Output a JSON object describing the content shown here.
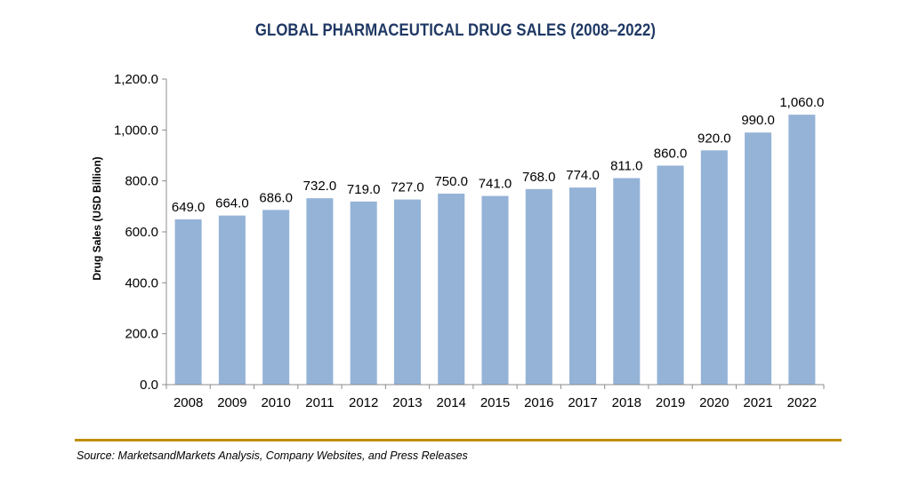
{
  "chart_data": {
    "type": "bar",
    "title": "GLOBAL PHARMACEUTICAL DRUG SALES (2008–2022)",
    "ylabel": "Drug Sales (USD Billion)",
    "xlabel": "",
    "categories": [
      "2008",
      "2009",
      "2010",
      "2011",
      "2012",
      "2013",
      "2014",
      "2015",
      "2016",
      "2017",
      "2018",
      "2019",
      "2020",
      "2021",
      "2022"
    ],
    "values": [
      649.0,
      664.0,
      686.0,
      732.0,
      719.0,
      727.0,
      750.0,
      741.0,
      768.0,
      774.0,
      811.0,
      860.0,
      920.0,
      990.0,
      1060.0
    ],
    "data_labels": [
      "649.0",
      "664.0",
      "686.0",
      "732.0",
      "719.0",
      "727.0",
      "750.0",
      "741.0",
      "768.0",
      "774.0",
      "811.0",
      "860.0",
      "920.0",
      "990.0",
      "1,060.0"
    ],
    "ylim": [
      0,
      1200
    ],
    "yticks": [
      0,
      200,
      400,
      600,
      800,
      1000,
      1200
    ],
    "ytick_labels": [
      "0.0",
      "200.0",
      "400.0",
      "600.0",
      "800.0",
      "1,000.0",
      "1,200.0"
    ],
    "grid": false,
    "bar_color": "#95b3d7"
  },
  "source": "Source: MarketsandMarkets Analysis, Company Websites, and Press Releases"
}
